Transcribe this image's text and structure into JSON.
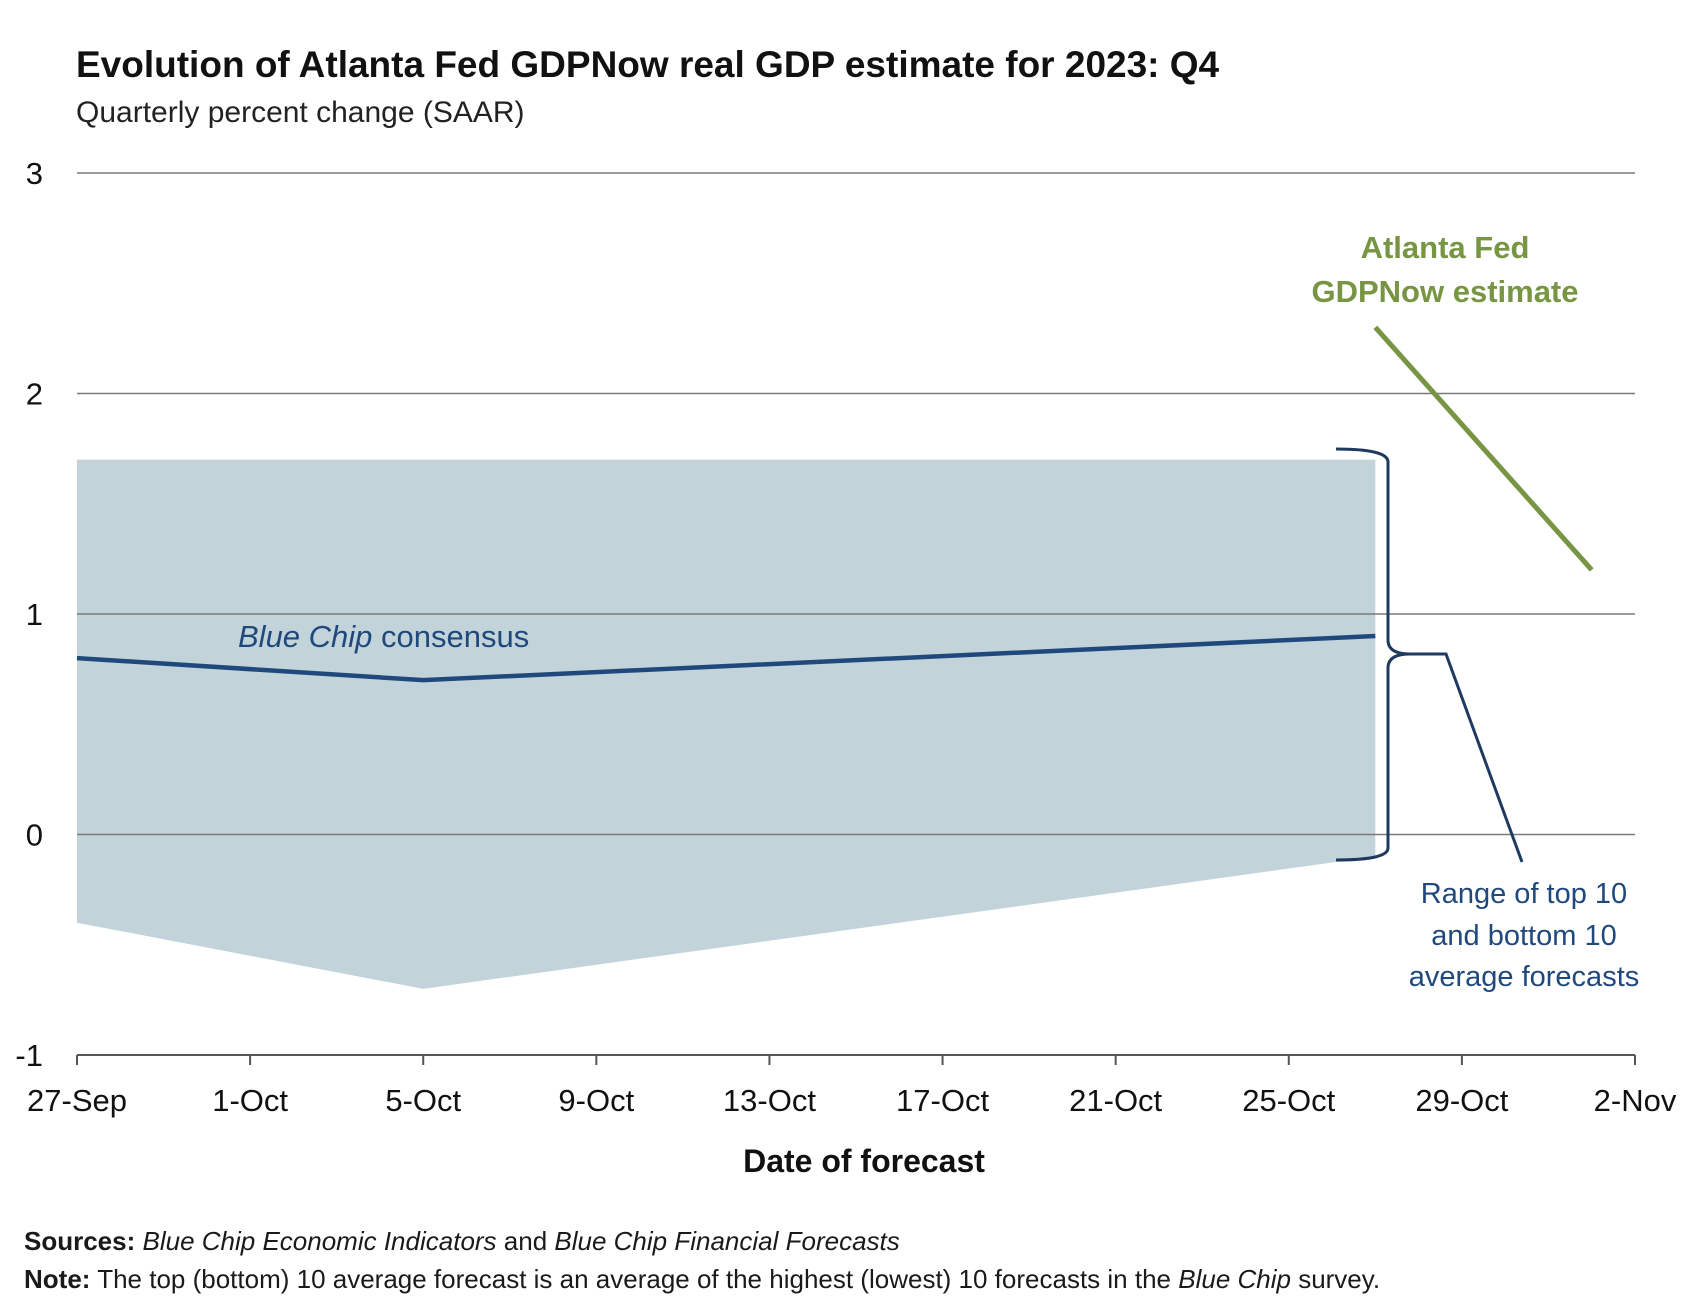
{
  "title": "Evolution of Atlanta Fed GDPNow real GDP estimate for 2023: Q4",
  "subtitle": "Quarterly percent change (SAAR)",
  "colors": {
    "band": "#c3d3da",
    "consensus": "#1f497d",
    "gdpnow": "#779543",
    "grid": "#7a7a7a",
    "bracket": "#1f3a5f"
  },
  "chart_data": {
    "type": "line",
    "xlabel": "Date of forecast",
    "ylabel": "",
    "ylim": [
      -1,
      3
    ],
    "yticks": [
      "3",
      "2",
      "1",
      "0",
      "-1"
    ],
    "xlim": [
      "2023-09-27",
      "2023-11-02"
    ],
    "xticks": [
      "27-Sep",
      "1-Oct",
      "5-Oct",
      "9-Oct",
      "13-Oct",
      "17-Oct",
      "21-Oct",
      "25-Oct",
      "29-Oct",
      "2-Nov"
    ],
    "grid": true,
    "series": [
      {
        "name": "Blue Chip consensus",
        "x": [
          "2023-09-27",
          "2023-10-05",
          "2023-10-27"
        ],
        "y": [
          0.8,
          0.7,
          0.9
        ]
      },
      {
        "name": "Atlanta Fed GDPNow estimate",
        "x": [
          "2023-10-27",
          "2023-11-01"
        ],
        "y": [
          2.3,
          1.2
        ]
      }
    ],
    "band": {
      "name": "Range of top 10 and bottom 10 average forecasts",
      "x": [
        "2023-09-27",
        "2023-10-05",
        "2023-10-27"
      ],
      "upper": [
        1.7,
        1.7,
        1.7
      ],
      "lower": [
        -0.4,
        -0.7,
        -0.1
      ]
    }
  },
  "annotations": {
    "consensus_italic": "Blue Chip",
    "consensus_rest": " consensus",
    "gdpnow_line1": "Atlanta Fed",
    "gdpnow_line2": "GDPNow estimate",
    "range_line1": "Range of top 10",
    "range_line2": "and bottom 10",
    "range_line3": "average forecasts"
  },
  "footer": {
    "sources_label": "Sources:",
    "sources_text1": "Blue Chip Economic Indicators",
    "sources_mid": " and ",
    "sources_text2": "Blue Chip Financial Forecasts",
    "note_label": "Note:",
    "note_text1": " The top (bottom) 10 average forecast is an average of the highest (lowest) 10 forecasts in the ",
    "note_italic": "Blue Chip",
    "note_text2": " survey."
  }
}
